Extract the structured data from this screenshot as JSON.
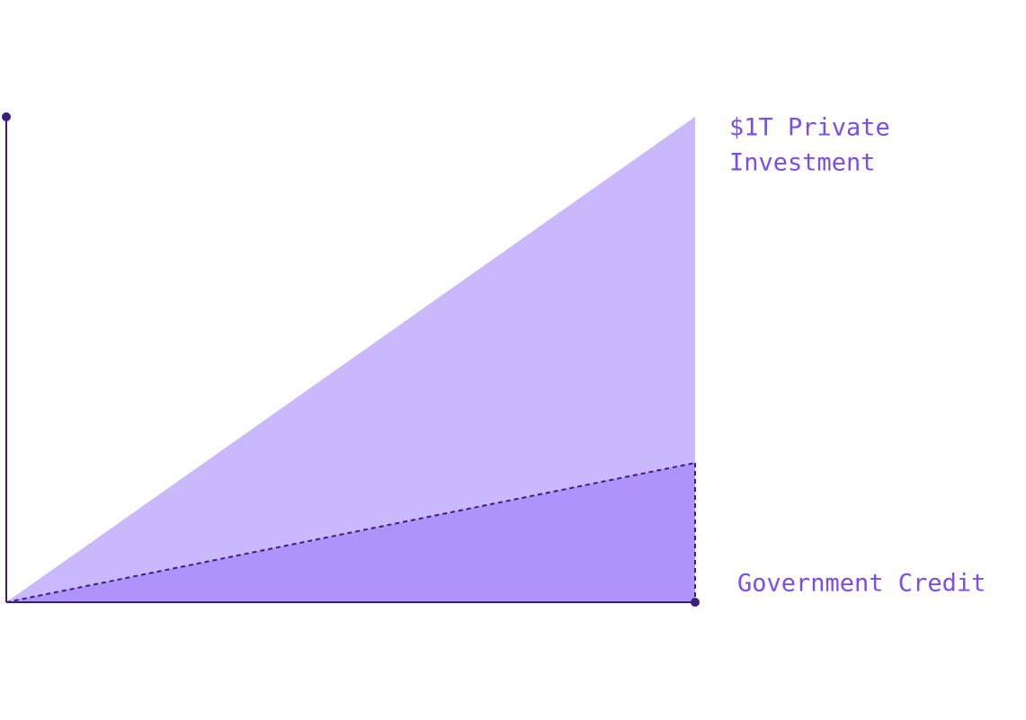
{
  "labels": {
    "private_investment": [
      "$1T Private",
      "Investment"
    ],
    "government_credit": "Government Credit"
  }
}
